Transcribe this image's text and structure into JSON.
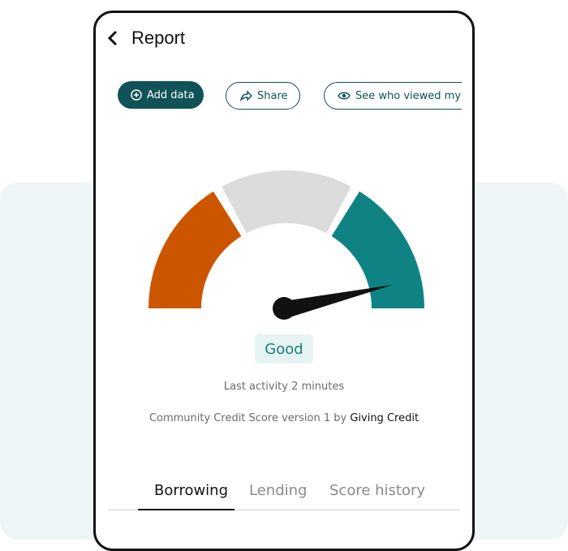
{
  "header": {
    "title": "Report"
  },
  "actions": [
    "Add data",
    "Share",
    "See who viewed my re"
  ],
  "score": {
    "label": "Good",
    "last_activity": "Last activity 2 minutes",
    "version_text": "Community Credit Score version 1 by",
    "provider": "Giving Credit"
  },
  "tabs": [
    "Borrowing",
    "Lending",
    "Score history"
  ]
}
